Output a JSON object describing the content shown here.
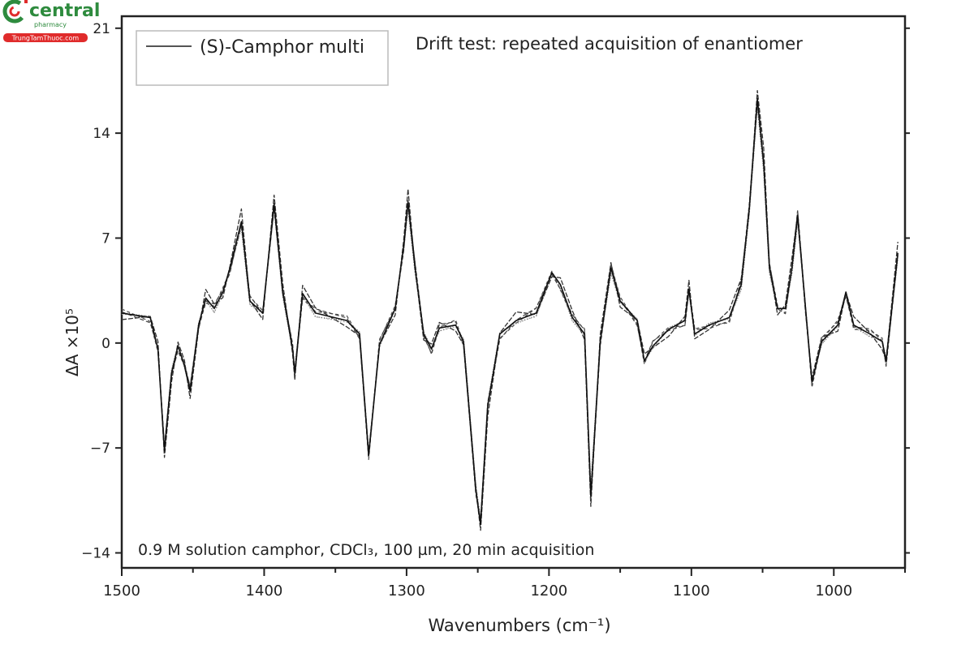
{
  "watermark": {
    "brand": "central",
    "sub": "pharmacy",
    "site": "TrungTamThuoc.com",
    "brand_color": "#2e8b3e",
    "accent_color": "#e02b2b"
  },
  "chart_data": {
    "type": "line",
    "title": "Drift test: repeated acquisition of enantiomer",
    "annotation": "0.9 M solution camphor, CDCl₃, 100 µm, 20 min acquisition",
    "xlabel": "Wavenumbers (cm⁻¹)",
    "ylabel": "ΔA ×10⁵",
    "xlim": [
      1500,
      950
    ],
    "ylim": [
      -15,
      21.8
    ],
    "x_ticks": [
      "1500",
      "1400",
      "1300",
      "1200",
      "1100",
      "1000"
    ],
    "y_ticks": [
      "21",
      "14",
      "7",
      "0",
      "−7",
      "−14"
    ],
    "grid": false,
    "legend": {
      "position": "top-left",
      "entries": [
        "(S)-Camphor multi"
      ]
    },
    "series": [
      {
        "name": "(S)-Camphor multi",
        "color": "#222222",
        "points": [
          [
            1500,
            2.0
          ],
          [
            1480,
            1.7
          ],
          [
            1474.6,
            -0.4
          ],
          [
            1470,
            -7.2
          ],
          [
            1465,
            -2
          ],
          [
            1460.5,
            -0.2
          ],
          [
            1456,
            -1.5
          ],
          [
            1452,
            -3.2
          ],
          [
            1446,
            1.2
          ],
          [
            1441,
            3
          ],
          [
            1435,
            2.3
          ],
          [
            1429,
            3.4
          ],
          [
            1424,
            5
          ],
          [
            1416,
            8.1
          ],
          [
            1410,
            2.8
          ],
          [
            1401,
            2
          ],
          [
            1393,
            9.3
          ],
          [
            1387,
            3.4
          ],
          [
            1380,
            -0.4
          ],
          [
            1378.5,
            -2
          ],
          [
            1373,
            3.3
          ],
          [
            1364,
            2
          ],
          [
            1342,
            1.5
          ],
          [
            1333,
            0.6
          ],
          [
            1326.6,
            -7.5
          ],
          [
            1319,
            -0.1
          ],
          [
            1308,
            2.3
          ],
          [
            1302,
            6.5
          ],
          [
            1299,
            9.4
          ],
          [
            1294,
            5
          ],
          [
            1288,
            0.6
          ],
          [
            1282.5,
            -0.4
          ],
          [
            1277,
            1
          ],
          [
            1265.5,
            1.2
          ],
          [
            1260,
            0.1
          ],
          [
            1251.4,
            -9.8
          ],
          [
            1248,
            -12.1
          ],
          [
            1243,
            -4.2
          ],
          [
            1234.5,
            0.6
          ],
          [
            1223,
            1.5
          ],
          [
            1209,
            2
          ],
          [
            1198,
            4.7
          ],
          [
            1192,
            3.9
          ],
          [
            1183.6,
            1.7
          ],
          [
            1175,
            0.6
          ],
          [
            1170.6,
            -10.2
          ],
          [
            1164,
            0.1
          ],
          [
            1156.5,
            5
          ],
          [
            1150,
            2.8
          ],
          [
            1138,
            1.5
          ],
          [
            1133,
            -1.2
          ],
          [
            1127,
            -0.2
          ],
          [
            1116,
            0.9
          ],
          [
            1104.5,
            1.5
          ],
          [
            1101.7,
            3.6
          ],
          [
            1097.7,
            0.6
          ],
          [
            1087.6,
            1.2
          ],
          [
            1073.4,
            1.7
          ],
          [
            1065,
            3.9
          ],
          [
            1059.3,
            9
          ],
          [
            1053.7,
            16.3
          ],
          [
            1049.2,
            12
          ],
          [
            1045.2,
            5
          ],
          [
            1039.5,
            2.3
          ],
          [
            1034,
            2.3
          ],
          [
            1029.4,
            5
          ],
          [
            1025.4,
            8.5
          ],
          [
            1019.8,
            2.3
          ],
          [
            1015.3,
            -2.6
          ],
          [
            1008.5,
            0.1
          ],
          [
            997.2,
            1.2
          ],
          [
            991.5,
            3.4
          ],
          [
            986,
            1.2
          ],
          [
            974.6,
            0.6
          ],
          [
            966,
            0.1
          ],
          [
            963.3,
            -1.2
          ],
          [
            955,
            6
          ]
        ]
      }
    ]
  }
}
